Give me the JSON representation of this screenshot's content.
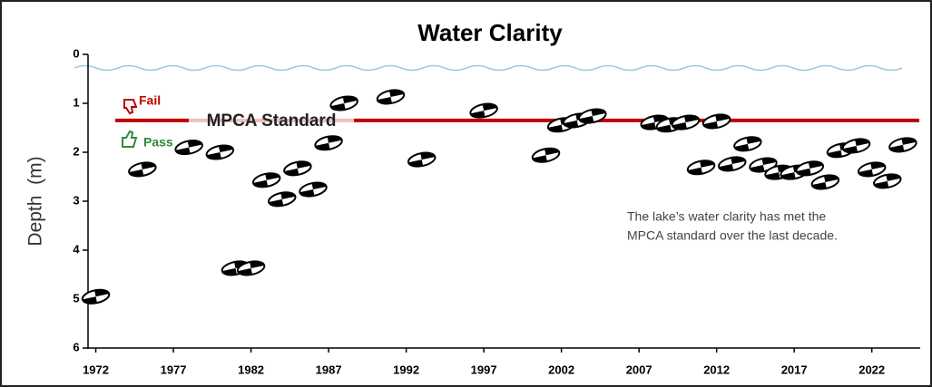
{
  "chart_data": {
    "type": "scatter",
    "title": "Water Clarity",
    "ylabel": "Depth  (m)",
    "x": [
      1972,
      1975,
      1978,
      1980,
      1981,
      1982,
      1983,
      1984,
      1985,
      1986,
      1987,
      1988,
      1991,
      1993,
      1997,
      2001,
      2002,
      2003,
      2004,
      2008,
      2009,
      2010,
      2011,
      2012,
      2013,
      2014,
      2015,
      2016,
      2017,
      2018,
      2019,
      2020,
      2021,
      2022,
      2023,
      2024
    ],
    "values": [
      4.95,
      2.35,
      1.9,
      2.0,
      4.37,
      4.37,
      2.57,
      2.96,
      2.33,
      2.76,
      1.81,
      1.0,
      0.87,
      2.15,
      1.15,
      2.06,
      1.44,
      1.35,
      1.26,
      1.39,
      1.44,
      1.39,
      2.31,
      1.37,
      2.24,
      1.83,
      2.26,
      2.41,
      2.41,
      2.33,
      2.61,
      1.96,
      1.87,
      2.35,
      2.59,
      1.85
    ],
    "xlim": [
      1971.5,
      2025
    ],
    "xticks": [
      1972,
      1977,
      1982,
      1987,
      1992,
      1997,
      2002,
      2007,
      2012,
      2017,
      2022
    ],
    "ylim": [
      0,
      6
    ],
    "yticks": [
      0,
      1,
      2,
      3,
      4,
      5,
      6
    ],
    "y_inverted": true,
    "standard": 1.35,
    "standard_color": "#c00000",
    "annotations": {
      "fail": "Fail",
      "pass": "Pass",
      "standard_label": "MPCA Standard",
      "note": [
        "The lake’s water clarity has met the",
        "MPCA standard over the last decade."
      ]
    }
  }
}
